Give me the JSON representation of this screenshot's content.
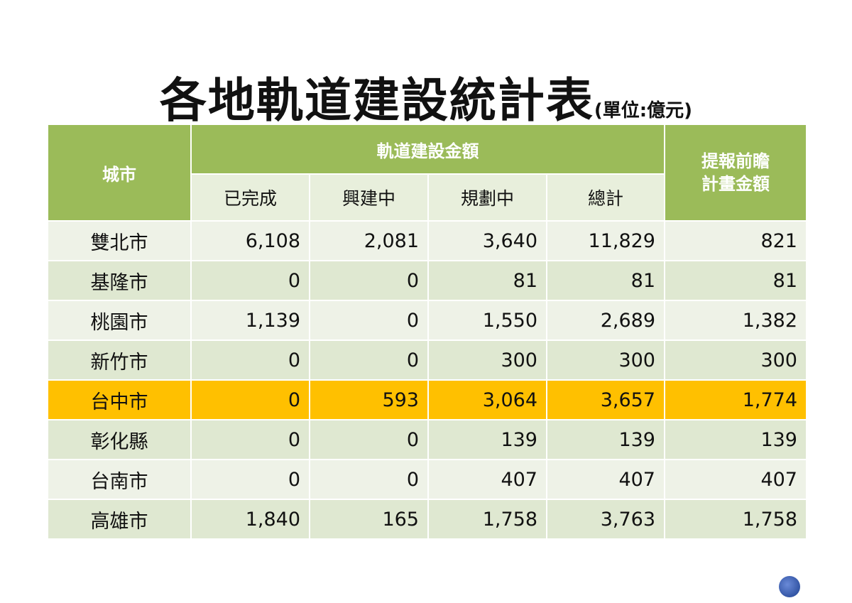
{
  "title": "各地軌道建設統計表",
  "unit": "(單位:億元)",
  "table": {
    "header_city": "城市",
    "header_group": "軌道建設金額",
    "header_proposal": "提報前瞻\n計畫金額",
    "sub_headers": [
      "已完成",
      "興建中",
      "規劃中",
      "總計"
    ],
    "rows": [
      {
        "city": "雙北市",
        "values": [
          "6,108",
          "2,081",
          "3,640",
          "11,829",
          "821"
        ]
      },
      {
        "city": "基隆市",
        "values": [
          "0",
          "0",
          "81",
          "81",
          "81"
        ]
      },
      {
        "city": "桃園市",
        "values": [
          "1,139",
          "0",
          "1,550",
          "2,689",
          "1,382"
        ]
      },
      {
        "city": "新竹市",
        "values": [
          "0",
          "0",
          "300",
          "300",
          "300"
        ]
      },
      {
        "city": "台中市",
        "values": [
          "0",
          "593",
          "3,064",
          "3,657",
          "1,774"
        ],
        "highlight": true
      },
      {
        "city": "彰化縣",
        "values": [
          "0",
          "0",
          "139",
          "139",
          "139"
        ]
      },
      {
        "city": "台南市",
        "values": [
          "0",
          "0",
          "407",
          "407",
          "407"
        ]
      },
      {
        "city": "高雄市",
        "values": [
          "1,840",
          "165",
          "1,758",
          "3,763",
          "1,758"
        ]
      }
    ]
  },
  "colors": {
    "header_green": "#9bbb59",
    "highlight": "#ffc000",
    "row_light": "#eef2e7",
    "row_dark": "#dfe8d1"
  },
  "logo_icon": "circle-logo"
}
